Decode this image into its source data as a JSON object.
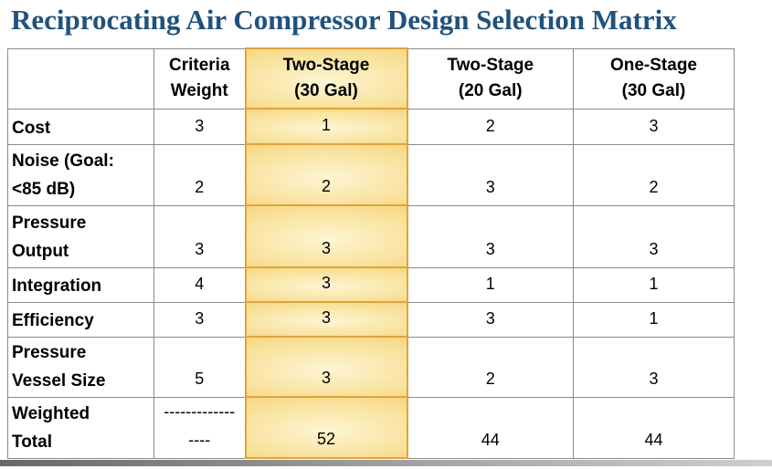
{
  "title": "Reciprocating Air Compressor Design Selection Matrix",
  "table": {
    "header": [
      "",
      "Criteria\nWeight",
      "Two-Stage\n(30 Gal)",
      "Two-Stage\n(20 Gal)",
      "One-Stage\n(30 Gal)"
    ],
    "highlighted_column": "Two-Stage (30 Gal)",
    "rows": [
      {
        "label": "Cost",
        "values": [
          "3",
          "1",
          "2",
          "3"
        ]
      },
      {
        "label": "Noise (Goal:\n<85 dB)",
        "values": [
          "2",
          "2",
          "3",
          "2"
        ]
      },
      {
        "label": "Pressure\nOutput",
        "values": [
          "3",
          "3",
          "3",
          "3"
        ]
      },
      {
        "label": "Integration",
        "values": [
          "4",
          "3",
          "1",
          "1"
        ]
      },
      {
        "label": "Efficiency",
        "values": [
          "3",
          "3",
          "3",
          "1"
        ]
      },
      {
        "label": "Pressure\nVessel Size",
        "values": [
          "5",
          "3",
          "2",
          "3"
        ]
      },
      {
        "label": "Weighted\nTotal",
        "values": [
          "-------------\n----",
          "52",
          "44",
          "44"
        ]
      }
    ]
  },
  "colors": {
    "title_blue": "#20527c",
    "highlight_gold_center": "#fdf5d3",
    "highlight_gold_edge": "#f3cb63",
    "highlight_border": "#dfa43c",
    "grid_line": "#8a8a8a"
  }
}
